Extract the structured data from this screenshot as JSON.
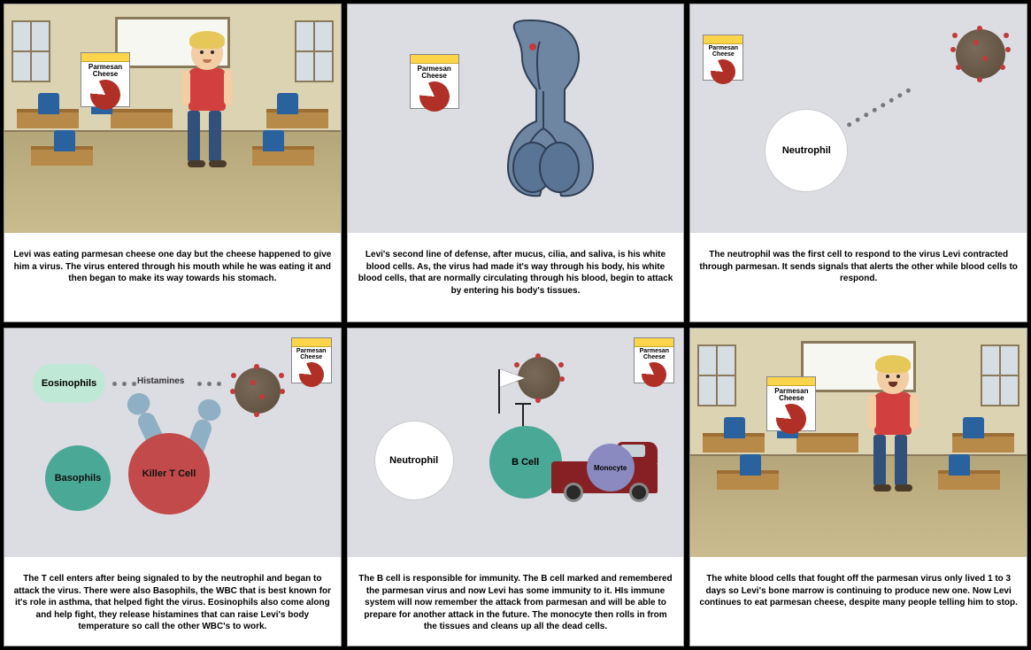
{
  "parmesan_label": "Parmesan\nCheese",
  "panels": [
    {
      "caption": "Levi was eating parmesan cheese one day but the cheese happened to give him a virus. The virus entered through his mouth while he was eating it and then began to make its way towards his stomach."
    },
    {
      "caption": "Levi's second line of defense, after mucus, cilia, and saliva, is his white blood cells. As, the virus had made it's way through his body, his white blood cells, that are normally circulating through his blood, begin to attack by entering his body's tissues."
    },
    {
      "caption": "The neutrophil was the first cell to respond to the virus Levi contracted through parmesan. It sends signals that alerts the other while blood cells to respond.",
      "neutrophil": "Neutrophil"
    },
    {
      "caption": "The T cell enters after being signaled to by the neutrophil and began to attack the virus. There were also Basophils, the WBC that is best known for it's role in asthma, that helped fight the virus. Eosinophils also come along and help fight, they release histamines that can raise Levi's body temperature so call the other WBC's to work.",
      "eosinophils": "Eosinophils",
      "basophils": "Basophils",
      "killerT": "Killer T Cell",
      "histamines": "Histamines"
    },
    {
      "caption": "The B cell is responsible for immunity. The B cell marked and remembered the parmesan virus and now Levi has some immunity to it. HIs immune system will now remember the attack from parmesan and will be able to prepare for another attack in the future. The monocyte then rolls in from the tissues and cleans up all the dead cells.",
      "neutrophil": "Neutrophil",
      "bcell": "B Cell",
      "monocyte": "Monocyte"
    },
    {
      "caption": "The white blood cells that fought off the parmesan virus only lived 1 to 3 days so Levi's bone marrow is continuing to produce new one. Now Levi continues to eat parmesan cheese, despite many people telling him to stop."
    }
  ],
  "colors": {
    "neutrophil": "#ffffff",
    "eosinophil": "#bfe8d6",
    "basophil": "#4aa896",
    "killerT": "#c24a4a",
    "bcell": "#4aa896",
    "monocyte": "#8a8ac0",
    "virus_spike": "#c23a3a"
  }
}
